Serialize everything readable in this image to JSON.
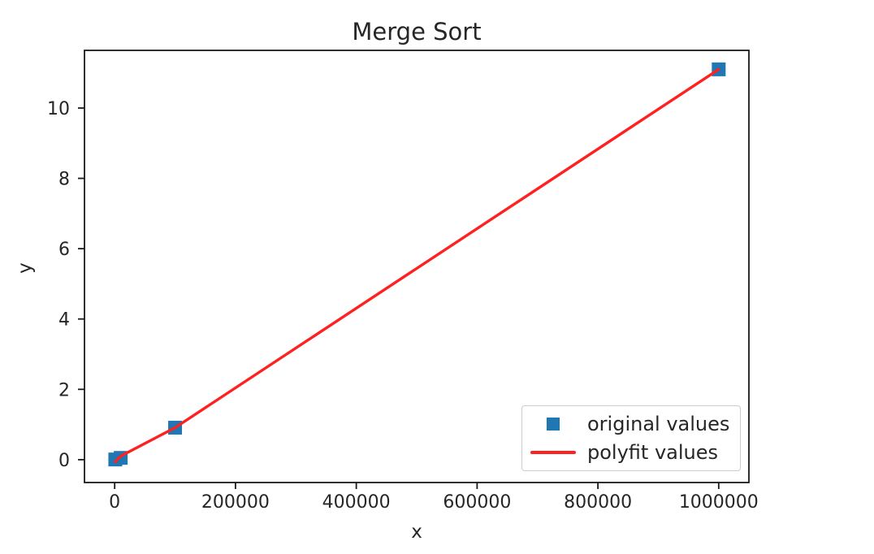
{
  "chart_data": {
    "type": "scatter+line",
    "title": "Merge Sort",
    "xlabel": "x",
    "ylabel": "y",
    "xlim": [
      -50000,
      1050000
    ],
    "ylim": [
      -0.65,
      11.64
    ],
    "x_ticks": [
      0,
      200000,
      400000,
      600000,
      800000,
      1000000
    ],
    "x_tick_labels": [
      "0",
      "200000",
      "400000",
      "600000",
      "800000",
      "1000000"
    ],
    "y_ticks": [
      0,
      2,
      4,
      6,
      8,
      10
    ],
    "y_tick_labels": [
      "0",
      "2",
      "4",
      "6",
      "8",
      "10"
    ],
    "grid": false,
    "axes_color": "#1a1a1a",
    "text_color": "#262626",
    "background_color": "#ffffff",
    "legend": {
      "position": "lower right",
      "entries": [
        {
          "label": "original values",
          "marker": "square",
          "color": "#1f77b4"
        },
        {
          "label": "polyfit values",
          "marker": "line",
          "color": "#ff2020"
        }
      ]
    },
    "series": [
      {
        "name": "original values",
        "type": "scatter",
        "marker": "square",
        "color": "#1f77b4",
        "x": [
          1000,
          10000,
          100000,
          1000000
        ],
        "y": [
          0.005,
          0.05,
          0.91,
          11.1
        ]
      },
      {
        "name": "polyfit values",
        "type": "line",
        "color": "#ff2020",
        "linewidth": 3.4,
        "x": [
          1000,
          10000,
          100000,
          1000000
        ],
        "y": [
          -0.06,
          0.1,
          0.91,
          11.1
        ]
      }
    ]
  }
}
